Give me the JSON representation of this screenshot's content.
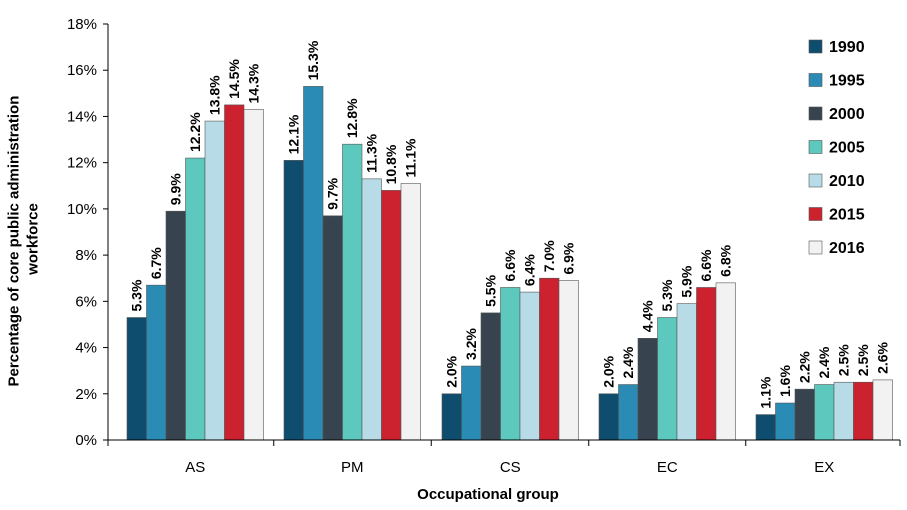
{
  "chart_data": {
    "type": "bar",
    "xlabel": "Occupational group",
    "ylabel": "Percentage of core public administration workforce",
    "ylim": [
      0,
      18
    ],
    "yticks": [
      "0%",
      "2%",
      "4%",
      "6%",
      "8%",
      "10%",
      "12%",
      "14%",
      "16%",
      "18%"
    ],
    "categories": [
      "AS",
      "PM",
      "CS",
      "EC",
      "EX"
    ],
    "grid": false,
    "legend_position": "right",
    "series": [
      {
        "name": "1990",
        "color": "#0e4d6e",
        "values": [
          5.3,
          12.1,
          2.0,
          2.0,
          1.1
        ],
        "labels": [
          "5.3%",
          "12.1%",
          "2.0%",
          "2.0%",
          "1.1%"
        ]
      },
      {
        "name": "1995",
        "color": "#2a8bb5",
        "values": [
          6.7,
          15.3,
          3.2,
          2.4,
          1.6
        ],
        "labels": [
          "6.7%",
          "15.3%",
          "3.2%",
          "2.4%",
          "1.6%"
        ]
      },
      {
        "name": "2000",
        "color": "#37444f",
        "values": [
          9.9,
          9.7,
          5.5,
          4.4,
          2.2
        ],
        "labels": [
          "9.9%",
          "9.7%",
          "5.5%",
          "4.4%",
          "2.2%"
        ]
      },
      {
        "name": "2005",
        "color": "#5cc8be",
        "values": [
          12.2,
          12.8,
          6.6,
          5.3,
          2.4
        ],
        "labels": [
          "12.2%",
          "12.8%",
          "6.6%",
          "5.3%",
          "2.4%"
        ]
      },
      {
        "name": "2010",
        "color": "#b7dce8",
        "values": [
          13.8,
          11.3,
          6.4,
          5.9,
          2.5
        ],
        "labels": [
          "13.8%",
          "11.3%",
          "6.4%",
          "5.9%",
          "2.5%"
        ]
      },
      {
        "name": "2015",
        "color": "#cc2230",
        "values": [
          14.5,
          10.8,
          7.0,
          6.6,
          2.5
        ],
        "labels": [
          "14.5%",
          "10.8%",
          "7.0%",
          "6.6%",
          "2.5%"
        ]
      },
      {
        "name": "2016",
        "color": "#f2f2f2",
        "values": [
          14.3,
          11.1,
          6.9,
          6.8,
          2.6
        ],
        "labels": [
          "14.3%",
          "11.1%",
          "6.9%",
          "6.8%",
          "2.6%"
        ]
      }
    ]
  }
}
